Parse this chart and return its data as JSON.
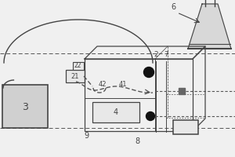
{
  "bg_color": "#f0f0f0",
  "line_color": "#444444",
  "dashed_color": "#555555",
  "white": "#ffffff",
  "dark": "#111111",
  "gray_box": "#d0d0d0",
  "light_box": "#e8e8e8"
}
